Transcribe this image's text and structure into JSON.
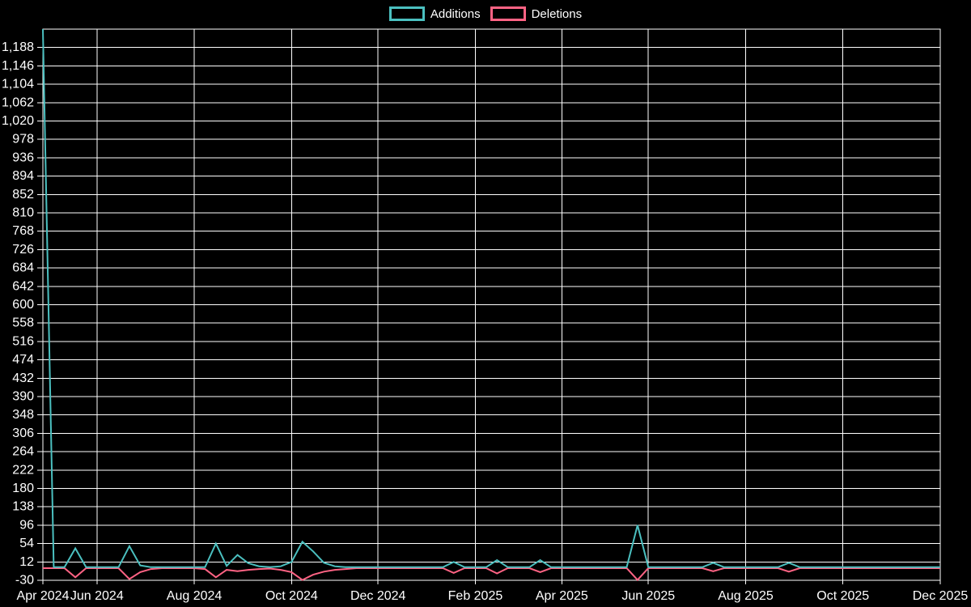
{
  "page": {
    "background": "#000000",
    "text_color": "#ffffff",
    "grid_color": "#ffffff"
  },
  "legend": {
    "position": "top-center",
    "items": [
      {
        "label": "Additions",
        "color": "#4bc0c0"
      },
      {
        "label": "Deletions",
        "color": "#ff6384"
      }
    ]
  },
  "chart_data": {
    "type": "line",
    "title": "",
    "xlabel": "",
    "ylabel": "",
    "grid": true,
    "legend_position": "top-center",
    "background": "#000000",
    "x_axis": {
      "unit": "week",
      "total_weeks": 83,
      "tick_labels": [
        "Apr 2024",
        "Jun 2024",
        "Aug 2024",
        "Oct 2024",
        "Dec 2024",
        "Feb 2025",
        "Apr 2025",
        "Jun 2025",
        "Aug 2025",
        "Oct 2025",
        "Dec 2025"
      ],
      "tick_weeks": [
        0,
        5,
        14,
        23,
        31,
        40,
        48,
        56,
        65,
        74,
        83
      ]
    },
    "y_axis": {
      "min": -30,
      "max": 1230,
      "step": 42,
      "tick_labels": [
        "-30",
        "12",
        "54",
        "96",
        "138",
        "180",
        "222",
        "264",
        "306",
        "348",
        "390",
        "432",
        "474",
        "516",
        "558",
        "600",
        "642",
        "684",
        "726",
        "768",
        "810",
        "852",
        "894",
        "936",
        "978",
        "1,020",
        "1,062",
        "1,104",
        "1,146",
        "1,188"
      ],
      "tick_values": [
        -30,
        12,
        54,
        96,
        138,
        180,
        222,
        264,
        306,
        348,
        390,
        432,
        474,
        516,
        558,
        600,
        642,
        684,
        726,
        768,
        810,
        852,
        894,
        936,
        978,
        1020,
        1062,
        1104,
        1146,
        1188
      ]
    },
    "series": [
      {
        "name": "Additions",
        "color": "#4bc0c0",
        "default_value": 0,
        "points_sparse": [
          [
            0,
            1230
          ],
          [
            3,
            43
          ],
          [
            8,
            48
          ],
          [
            9,
            4
          ],
          [
            16,
            54
          ],
          [
            17,
            3
          ],
          [
            18,
            28
          ],
          [
            19,
            9
          ],
          [
            20,
            2
          ],
          [
            22,
            2
          ],
          [
            23,
            12
          ],
          [
            24,
            58
          ],
          [
            25,
            36
          ],
          [
            26,
            10
          ],
          [
            27,
            2
          ],
          [
            38,
            12
          ],
          [
            42,
            16
          ],
          [
            46,
            16
          ],
          [
            55,
            96
          ],
          [
            62,
            10
          ],
          [
            69,
            10
          ]
        ]
      },
      {
        "name": "Deletions",
        "color": "#ff6384",
        "default_value": 0,
        "points_sparse": [
          [
            3,
            -21
          ],
          [
            8,
            -25
          ],
          [
            9,
            -9
          ],
          [
            10,
            -2
          ],
          [
            15,
            -2
          ],
          [
            16,
            -21
          ],
          [
            17,
            -4
          ],
          [
            18,
            -7
          ],
          [
            19,
            -4
          ],
          [
            20,
            -2
          ],
          [
            21,
            -1
          ],
          [
            22,
            -4
          ],
          [
            23,
            -9
          ],
          [
            24,
            -27
          ],
          [
            25,
            -15
          ],
          [
            26,
            -8
          ],
          [
            27,
            -4
          ],
          [
            28,
            -2
          ],
          [
            38,
            -11
          ],
          [
            42,
            -12
          ],
          [
            46,
            -9
          ],
          [
            55,
            -27
          ],
          [
            62,
            -7
          ],
          [
            69,
            -8
          ]
        ]
      }
    ]
  }
}
